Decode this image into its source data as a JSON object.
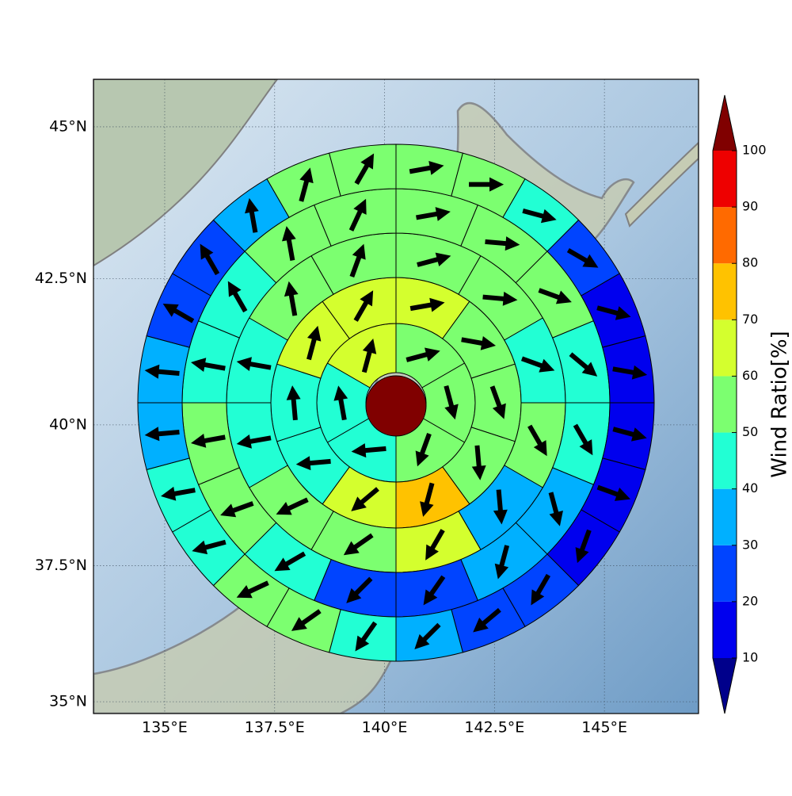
{
  "chart_data": {
    "type": "polar_sector_map",
    "xlim": [
      133.38,
      147.14
    ],
    "ylim": [
      34.78,
      45.76
    ],
    "xticks": [
      {
        "value": 135,
        "label": "135°E"
      },
      {
        "value": 137.5,
        "label": "137.5°E"
      },
      {
        "value": 140,
        "label": "140°E"
      },
      {
        "value": 142.5,
        "label": "142.5°E"
      },
      {
        "value": 145,
        "label": "145°E"
      }
    ],
    "yticks": [
      {
        "value": 35,
        "label": "35°N"
      },
      {
        "value": 37.5,
        "label": "37.5°N"
      },
      {
        "value": 40,
        "label": "40°N"
      },
      {
        "value": 42.5,
        "label": "42.5°N"
      },
      {
        "value": 45,
        "label": "45°N"
      }
    ],
    "grid": true,
    "rings": [
      {
        "values": [
          55,
          55,
          55,
          45,
          45,
          65
        ],
        "directions": [
          75,
          165,
          200,
          265,
          350,
          15
        ]
      },
      {
        "values": [
          65,
          55,
          55,
          55,
          75,
          65,
          45,
          45,
          65,
          65
        ],
        "directions": [
          80,
          100,
          160,
          175,
          195,
          230,
          265,
          355,
          15,
          30
        ]
      },
      {
        "values": [
          55,
          55,
          45,
          55,
          35,
          65,
          55,
          55,
          45,
          45,
          55,
          55
        ],
        "directions": [
          75,
          95,
          110,
          150,
          175,
          210,
          235,
          245,
          260,
          280,
          350,
          20
        ]
      },
      {
        "values": [
          55,
          55,
          55,
          45,
          45,
          35,
          35,
          25,
          25,
          45,
          55,
          55,
          45,
          45,
          55,
          55
        ],
        "directions": [
          80,
          95,
          110,
          130,
          150,
          165,
          195,
          215,
          225,
          240,
          250,
          260,
          280,
          330,
          350,
          25
        ]
      },
      {
        "values": [
          55,
          55,
          45,
          25,
          15,
          15,
          15,
          15,
          15,
          25,
          25,
          35,
          45,
          55,
          55,
          45,
          45,
          35,
          35,
          25,
          25,
          35,
          55,
          55
        ],
        "directions": [
          80,
          90,
          105,
          120,
          105,
          100,
          105,
          110,
          200,
          210,
          230,
          225,
          215,
          235,
          245,
          255,
          260,
          265,
          275,
          300,
          330,
          350,
          15,
          30
        ]
      }
    ],
    "colorbar": {
      "label": "Wind Ratio[%]",
      "ticks": [
        10,
        20,
        30,
        40,
        50,
        60,
        70,
        80,
        90,
        100
      ],
      "colors": [
        "#00008b",
        "#0000ee",
        "#0044ff",
        "#00b0ff",
        "#22ffd4",
        "#7cff70",
        "#d4ff2e",
        "#ffc200",
        "#ff6a00",
        "#ee0000",
        "#800000"
      ]
    }
  }
}
